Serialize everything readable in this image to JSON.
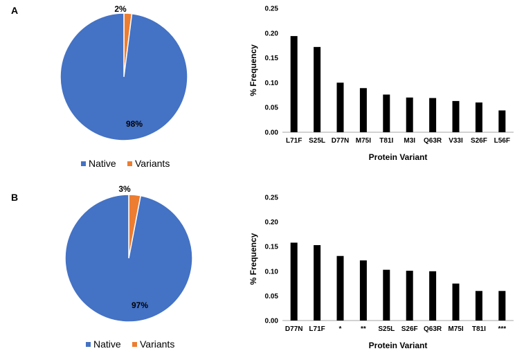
{
  "colors": {
    "native": "#4472C4",
    "variants": "#ED7D31",
    "bar": "#000000",
    "axis": "#A6A6A6"
  },
  "panels": [
    {
      "label": "A"
    },
    {
      "label": "B"
    }
  ],
  "chart_data": [
    {
      "type": "pie",
      "panel": "A",
      "categories": [
        "Native",
        "Variants"
      ],
      "values": [
        98,
        2
      ],
      "labels": [
        "98%",
        "2%"
      ],
      "legend": [
        "Native",
        "Variants"
      ]
    },
    {
      "type": "bar",
      "panel": "A",
      "categories": [
        "L71F",
        "S25L",
        "D77N",
        "M75I",
        "T81I",
        "M3I",
        "Q63R",
        "V33I",
        "S26F",
        "L56F"
      ],
      "values": [
        0.194,
        0.172,
        0.1,
        0.089,
        0.076,
        0.07,
        0.069,
        0.063,
        0.06,
        0.044
      ],
      "ylim": [
        0,
        0.25
      ],
      "yticks": [
        "0.00",
        "0.05",
        "0.10",
        "0.15",
        "0.20",
        "0.25"
      ],
      "xlabel": "Protein Variant",
      "ylabel": "% Frequency"
    },
    {
      "type": "pie",
      "panel": "B",
      "categories": [
        "Native",
        "Variants"
      ],
      "values": [
        97,
        3
      ],
      "labels": [
        "97%",
        "3%"
      ],
      "legend": [
        "Native",
        "Variants"
      ]
    },
    {
      "type": "bar",
      "panel": "B",
      "categories": [
        "D77N",
        "L71F",
        "*",
        "**",
        "S25L",
        "S26F",
        "Q63R",
        "M75I",
        "T81I",
        "***"
      ],
      "values": [
        0.158,
        0.153,
        0.131,
        0.122,
        0.103,
        0.101,
        0.1,
        0.075,
        0.06,
        0.06
      ],
      "ylim": [
        0,
        0.25
      ],
      "yticks": [
        "0.00",
        "0.05",
        "0.10",
        "0.15",
        "0.20",
        "0.25"
      ],
      "xlabel": "Protein Variant",
      "ylabel": "% Frequency"
    }
  ]
}
